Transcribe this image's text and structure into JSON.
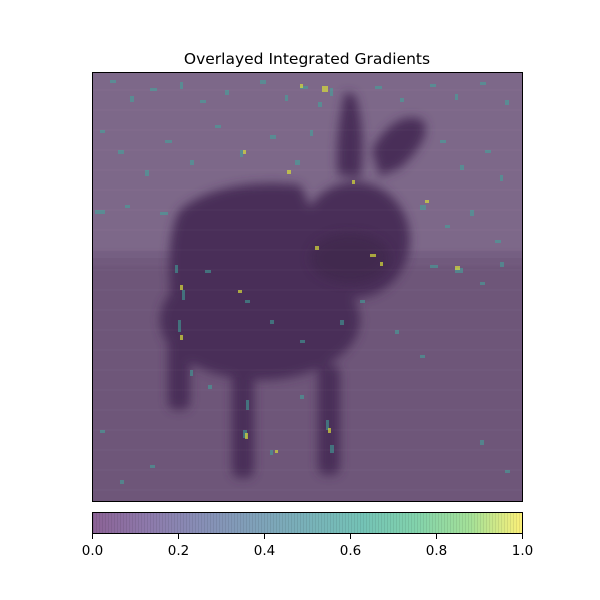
{
  "chart_data": {
    "type": "heatmap",
    "title": "Overlayed Integrated Gradients",
    "xlabel": "",
    "ylabel": "",
    "axes_ticks_visible": false,
    "colormap": "viridis",
    "overlay_alpha": 0.6,
    "value_range": [
      0.0,
      1.0
    ],
    "colorbar": {
      "orientation": "horizontal",
      "placement": "bottom",
      "ticks": [
        0.0,
        0.2,
        0.4,
        0.6,
        0.8,
        1.0
      ],
      "tick_labels": [
        "0.0",
        "0.2",
        "0.4",
        "0.6",
        "0.8",
        "1.0"
      ]
    },
    "colors": {
      "viridis_low": "#440154",
      "viridis_mid": "#21918c",
      "viridis_high": "#fde725",
      "frame": "#000000"
    }
  }
}
